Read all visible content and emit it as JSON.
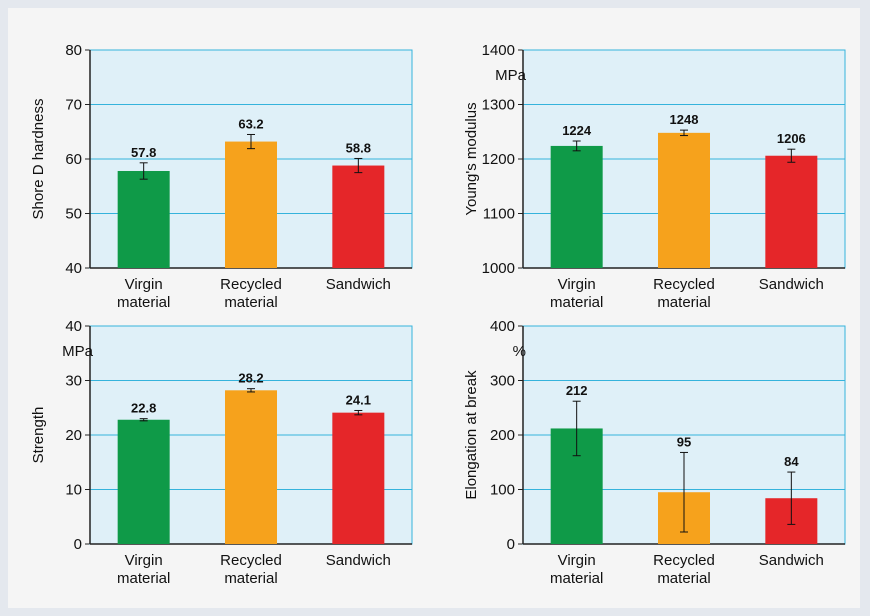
{
  "chart_data": [
    {
      "type": "bar",
      "categories": [
        [
          "Virgin",
          "material"
        ],
        [
          "Recycled",
          "material"
        ],
        [
          "Sandwich"
        ]
      ],
      "values": [
        57.8,
        63.2,
        58.8
      ],
      "errors": [
        1.5,
        1.3,
        1.3
      ],
      "data_labels": [
        "57.8",
        "63.2",
        "58.8"
      ],
      "ylabel": "Shore D hardness",
      "unit": "",
      "ylim": [
        40,
        80
      ],
      "yticks": [
        "40",
        "50",
        "60",
        "70",
        "80"
      ],
      "grid": true
    },
    {
      "type": "bar",
      "categories": [
        [
          "Virgin",
          "material"
        ],
        [
          "Recycled",
          "material"
        ],
        [
          "Sandwich"
        ]
      ],
      "values": [
        1224,
        1248,
        1206
      ],
      "errors": [
        9,
        5,
        12
      ],
      "data_labels": [
        "1224",
        "1248",
        "1206"
      ],
      "ylabel": "Young's modulus",
      "unit": "MPa",
      "ylim": [
        1000,
        1400
      ],
      "yticks": [
        "1000",
        "1100",
        "1200",
        "1300",
        "1400"
      ],
      "grid": true
    },
    {
      "type": "bar",
      "categories": [
        [
          "Virgin",
          "material"
        ],
        [
          "Recycled",
          "material"
        ],
        [
          "Sandwich"
        ]
      ],
      "values": [
        22.8,
        28.2,
        24.1
      ],
      "errors": [
        0.2,
        0.3,
        0.4
      ],
      "data_labels": [
        "22.8",
        "28.2",
        "24.1"
      ],
      "ylabel": "Strength",
      "unit": "MPa",
      "ylim": [
        0,
        40
      ],
      "yticks": [
        "0",
        "10",
        "20",
        "30",
        "40"
      ],
      "grid": true
    },
    {
      "type": "bar",
      "categories": [
        [
          "Virgin",
          "material"
        ],
        [
          "Recycled",
          "material"
        ],
        [
          "Sandwich"
        ]
      ],
      "values": [
        212,
        95,
        84
      ],
      "errors": [
        50,
        73,
        48
      ],
      "data_labels": [
        "212",
        "95",
        "84"
      ],
      "ylabel": "Elongation at break",
      "unit": "%",
      "ylim": [
        0,
        400
      ],
      "yticks": [
        "0",
        "100",
        "200",
        "300",
        "400"
      ],
      "grid": true
    }
  ],
  "colors": {
    "bars": [
      "#0f9a48",
      "#f6a21c",
      "#e52629"
    ],
    "plot_background": "#dff0f8",
    "gridline": "#35b3dc",
    "axis": "#222222",
    "error_bar": "#111111"
  }
}
